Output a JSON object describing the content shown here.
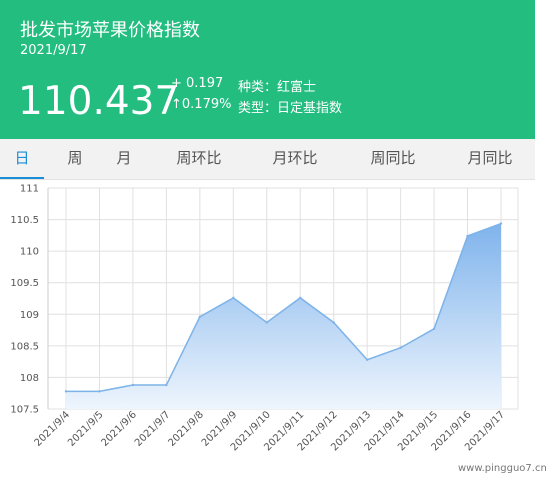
{
  "header": {
    "title": "批发市场苹果价格指数",
    "date": "2021/9/17",
    "price": "110.437",
    "change_abs": "+ 0.197",
    "change_pct": "↑0.179%",
    "variety": "种类：红富士",
    "index_type": "类型：日定基指数",
    "bg_color": "#23bd80"
  },
  "tabs": [
    {
      "label": "日",
      "active": true
    },
    {
      "label": "周",
      "active": false
    },
    {
      "label": "月",
      "active": false
    },
    {
      "label": "周环比",
      "active": false
    },
    {
      "label": "月环比",
      "active": false
    },
    {
      "label": "周同比",
      "active": false
    },
    {
      "label": "月同比",
      "active": false
    }
  ],
  "accent_color": "#1a8fd8",
  "chart_data": {
    "type": "area",
    "x": [
      "2021/9/4",
      "2021/9/5",
      "2021/9/6",
      "2021/9/7",
      "2021/9/8",
      "2021/9/9",
      "2021/9/10",
      "2021/9/11",
      "2021/9/12",
      "2021/9/13",
      "2021/9/14",
      "2021/9/15",
      "2021/9/16",
      "2021/9/17"
    ],
    "values": [
      107.78,
      107.78,
      107.88,
      107.88,
      108.96,
      109.26,
      108.87,
      109.26,
      108.87,
      108.28,
      108.47,
      108.77,
      110.24,
      110.437
    ],
    "yticks": [
      "107.5",
      "108",
      "108.5",
      "109",
      "109.5",
      "110",
      "110.5",
      "111"
    ],
    "ylim": [
      107.5,
      111
    ],
    "grid": true,
    "line_color": "#7db3e8"
  },
  "watermark": "www.pingguo7.cn"
}
